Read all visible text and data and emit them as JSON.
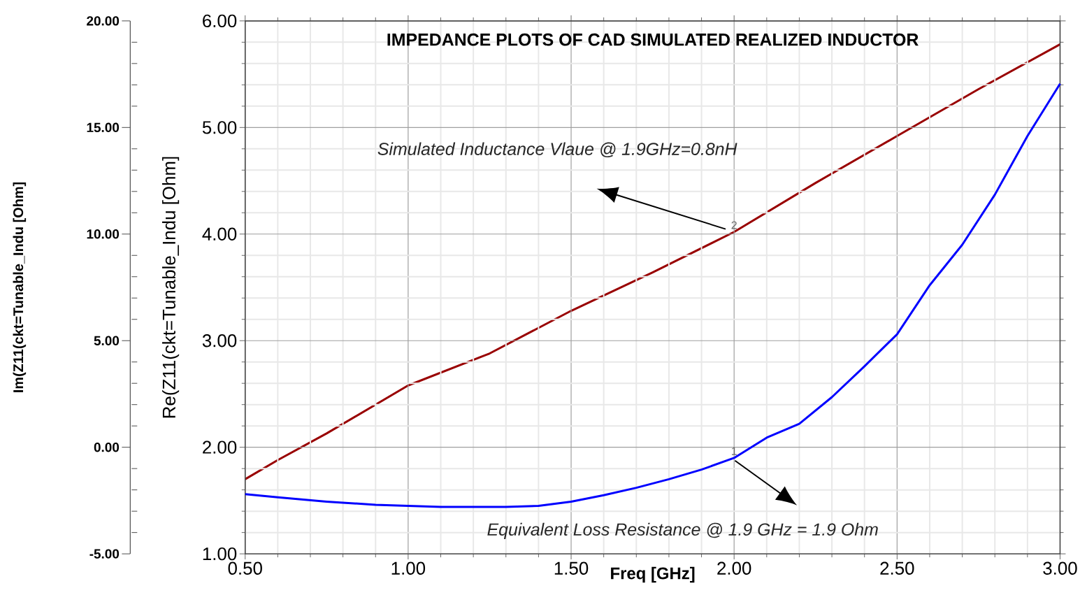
{
  "chart_data": {
    "type": "line",
    "title": "IMPEDANCE PLOTS OF CAD SIMULATED REALIZED INDUCTOR",
    "xlabel": "Freq [GHz]",
    "ylabel": "Re(Z11(ckt=Tunable_Indu [Ohm]",
    "y2label": "Im(Z11(ckt=Tunable_Indu [Ohm]",
    "xlim": [
      0.5,
      3.0
    ],
    "xticks": [
      {
        "value": 0.5,
        "label": "0.50"
      },
      {
        "value": 1.0,
        "label": "1.00"
      },
      {
        "value": 1.5,
        "label": "1.50"
      },
      {
        "value": 2.0,
        "label": "2.00"
      },
      {
        "value": 2.5,
        "label": "2.50"
      },
      {
        "value": 3.0,
        "label": "3.00"
      }
    ],
    "ylim": [
      1,
      6
    ],
    "yticks": [
      {
        "value": 1,
        "label": "1.00"
      },
      {
        "value": 2,
        "label": "2.00"
      },
      {
        "value": 3,
        "label": "3.00"
      },
      {
        "value": 4,
        "label": "4.00"
      },
      {
        "value": 5,
        "label": "5.00"
      },
      {
        "value": 6,
        "label": "6.00"
      }
    ],
    "y2lim": [
      -5,
      20
    ],
    "y2ticks": [
      {
        "value": -5,
        "label": "-5.00"
      },
      {
        "value": 0,
        "label": "0.00"
      },
      {
        "value": 5,
        "label": "5.00"
      },
      {
        "value": 10,
        "label": "10.00"
      },
      {
        "value": 15,
        "label": "15.00"
      },
      {
        "value": 20,
        "label": "20.00"
      }
    ],
    "grid": true,
    "series": [
      {
        "color": "#990000",
        "axis": "y2",
        "x": [
          0.5,
          0.6,
          0.75,
          1.0,
          1.25,
          1.5,
          1.75,
          2.0,
          2.25,
          2.5,
          2.75,
          3.0
        ],
        "values": [
          -1.5,
          -0.6,
          0.65,
          2.9,
          4.4,
          6.4,
          8.2,
          10.1,
          12.4,
          14.6,
          16.8,
          18.9
        ]
      },
      {
        "color": "#0000ff",
        "x": [
          0.5,
          0.6,
          0.75,
          0.8,
          0.9,
          1.0,
          1.1,
          1.2,
          1.3,
          1.4,
          1.5,
          1.6,
          1.7,
          1.8,
          1.9,
          2.0,
          2.1,
          2.2,
          2.3,
          2.4,
          2.5,
          2.6,
          2.7,
          2.8,
          2.9,
          3.0
        ],
        "values": [
          1.56,
          1.53,
          1.49,
          1.48,
          1.46,
          1.45,
          1.44,
          1.44,
          1.44,
          1.45,
          1.49,
          1.55,
          1.62,
          1.7,
          1.79,
          1.9,
          2.09,
          2.22,
          2.47,
          2.76,
          3.06,
          3.52,
          3.9,
          4.37,
          4.92,
          5.41
        ]
      }
    ],
    "annotations": [
      "Simulated Inductance Vlaue @ 1.9GHz=0.8nH",
      "Equivalent Loss Resistance @ 1.9 GHz = 1.9 Ohm",
      {
        "text": "1",
        "x": 2.0,
        "y": 1.9
      },
      {
        "text": "2",
        "x": 2.0,
        "y": 4.02
      }
    ]
  }
}
